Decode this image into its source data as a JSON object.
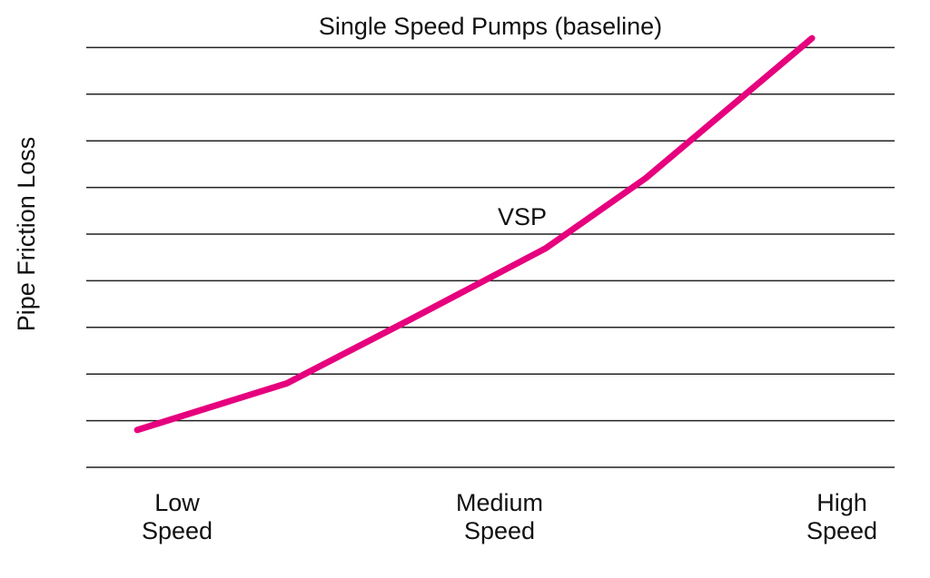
{
  "chart_data": {
    "type": "line",
    "title": "",
    "xlabel": "",
    "ylabel": "Pipe Friction Loss",
    "x_tick_labels": [
      {
        "x": 0,
        "lines": [
          "Low",
          "Speed"
        ]
      },
      {
        "x": 1,
        "lines": [
          "Medium",
          "Speed"
        ]
      },
      {
        "x": 2,
        "lines": [
          "High",
          "Speed"
        ]
      }
    ],
    "xlim": [
      -0.27,
      2.15
    ],
    "ylim": [
      0,
      9
    ],
    "grid": "horizontal",
    "gridline_count": 10,
    "annotations": [
      {
        "text": "Single Speed Pumps (baseline)",
        "refers_to": "top gridline"
      },
      {
        "text": "VSP",
        "refers_to": "series"
      }
    ],
    "series": [
      {
        "name": "VSP",
        "color": "#e6007e",
        "x": [
          -0.12,
          0.33,
          0.71,
          1.11,
          1.41,
          1.71,
          1.91
        ],
        "y": [
          0.8,
          1.8,
          3.2,
          4.7,
          6.2,
          8.0,
          9.2
        ]
      }
    ]
  }
}
